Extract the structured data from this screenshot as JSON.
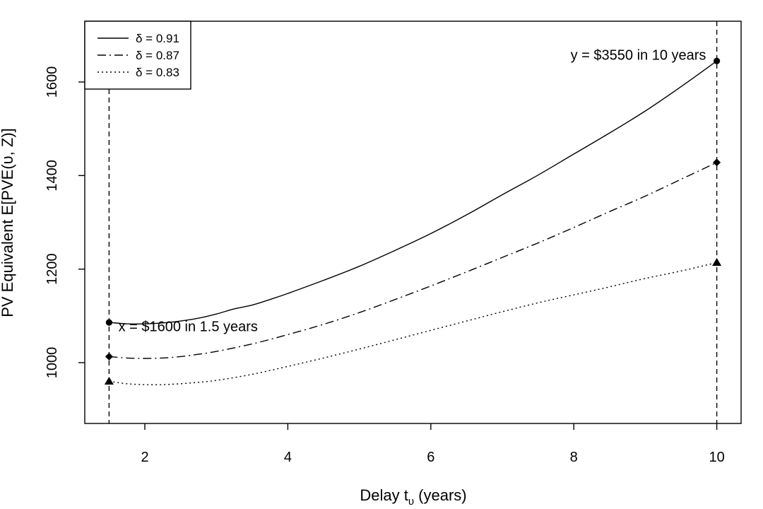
{
  "chart_data": {
    "type": "line",
    "xlabel_main": "Delay t",
    "xlabel_sub": "υ",
    "xlabel_tail": " (years)",
    "ylabel": "PV Equivalent E[PVE(υ, Z)]",
    "xlim": [
      1.5,
      10
    ],
    "ylim": [
      870,
      1730
    ],
    "xticks": [
      2,
      4,
      6,
      8,
      10
    ],
    "yticks": [
      1000,
      1200,
      1400,
      1600
    ],
    "grid": false,
    "legend_position": "top-left",
    "series": [
      {
        "name": "δ = 0.91",
        "legend_symbol": "δ",
        "legend_value": " = 0.91",
        "line_style": "solid",
        "marker": "circle",
        "x": [
          1.5,
          1.75,
          2,
          2.25,
          2.5,
          2.75,
          3,
          3.25,
          3.5,
          3.75,
          4,
          4.5,
          5,
          5.5,
          6,
          6.5,
          7,
          7.5,
          8,
          8.5,
          9,
          9.5,
          10
        ],
        "y": [
          1086,
          1083,
          1083,
          1085,
          1089,
          1095,
          1104,
          1115,
          1123,
          1135,
          1148,
          1176,
          1206,
          1240,
          1276,
          1316,
          1359,
          1401,
          1446,
          1491,
          1538,
          1590,
          1645
        ]
      },
      {
        "name": "δ = 0.87",
        "legend_symbol": "δ",
        "legend_value": " = 0.87",
        "line_style": "dashdot",
        "marker": "diamond",
        "x": [
          1.5,
          1.75,
          2,
          2.25,
          2.5,
          2.75,
          3,
          3.5,
          4,
          4.5,
          5,
          5.5,
          6,
          6.5,
          7,
          7.5,
          8,
          8.5,
          9,
          9.5,
          10
        ],
        "y": [
          1013,
          1010,
          1009,
          1010,
          1013,
          1018,
          1024,
          1040,
          1060,
          1082,
          1107,
          1135,
          1164,
          1194,
          1225,
          1256,
          1289,
          1323,
          1356,
          1392,
          1428
        ]
      },
      {
        "name": "δ = 0.83",
        "legend_symbol": "δ",
        "legend_value": " = 0.83",
        "line_style": "dotted",
        "marker": "triangle",
        "x": [
          1.5,
          1.75,
          2,
          2.25,
          2.5,
          2.75,
          3,
          3.5,
          4,
          4.5,
          5,
          5.5,
          6,
          6.5,
          7,
          7.5,
          8,
          8.5,
          9,
          9.5,
          10
        ],
        "y": [
          960,
          955,
          953,
          953,
          955,
          958,
          962,
          975,
          992,
          1010,
          1029,
          1049,
          1069,
          1089,
          1109,
          1128,
          1145,
          1162,
          1180,
          1196,
          1214
        ]
      }
    ],
    "reference_lines": [
      1.5,
      10
    ],
    "annotations": [
      {
        "text": "x = $1600 in 1.5 years",
        "x": 1.63,
        "y": 1067
      },
      {
        "text": "y = $3550 in 10 years",
        "x": 9.85,
        "y": 1648
      }
    ]
  }
}
